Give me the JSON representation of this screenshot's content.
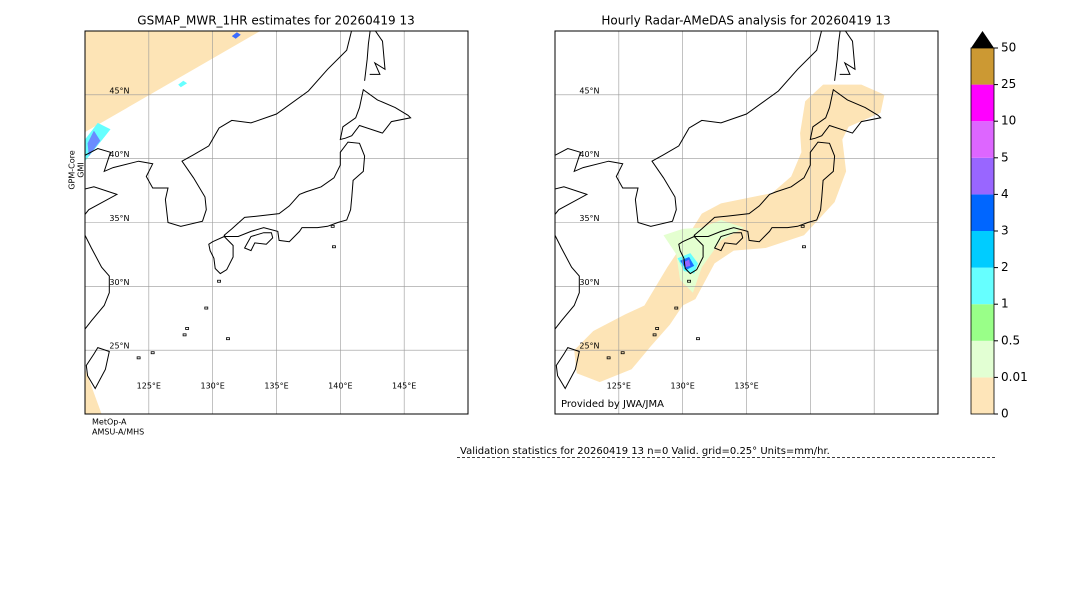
{
  "left_panel": {
    "title": "GSMAP_MWR_1HR estimates for 20260419 13",
    "lat_labels": [
      "45°N",
      "40°N",
      "35°N",
      "30°N",
      "25°N"
    ],
    "lon_labels": [
      "125°E",
      "130°E",
      "135°E",
      "140°E",
      "145°E"
    ],
    "side_label": [
      "GPM-Core",
      "GMI"
    ],
    "footer": [
      "MetOp-A",
      "AMSU-A/MHS"
    ]
  },
  "right_panel": {
    "title": "Hourly Radar-AMeDAS analysis for 20260419 13",
    "lat_labels": [
      "45°N",
      "40°N",
      "35°N",
      "30°N",
      "25°N"
    ],
    "lon_labels": [
      "125°E",
      "130°E",
      "135°E"
    ],
    "credit": "Provided by JWA/JMA"
  },
  "colorbar": {
    "ticks": [
      "0",
      "0.01",
      "0.5",
      "1",
      "2",
      "3",
      "4",
      "5",
      "10",
      "25",
      "50"
    ]
  },
  "validation": "Validation statistics for 20260419 13  n=0 Valid. grid=0.25° Units=mm/hr."
}
